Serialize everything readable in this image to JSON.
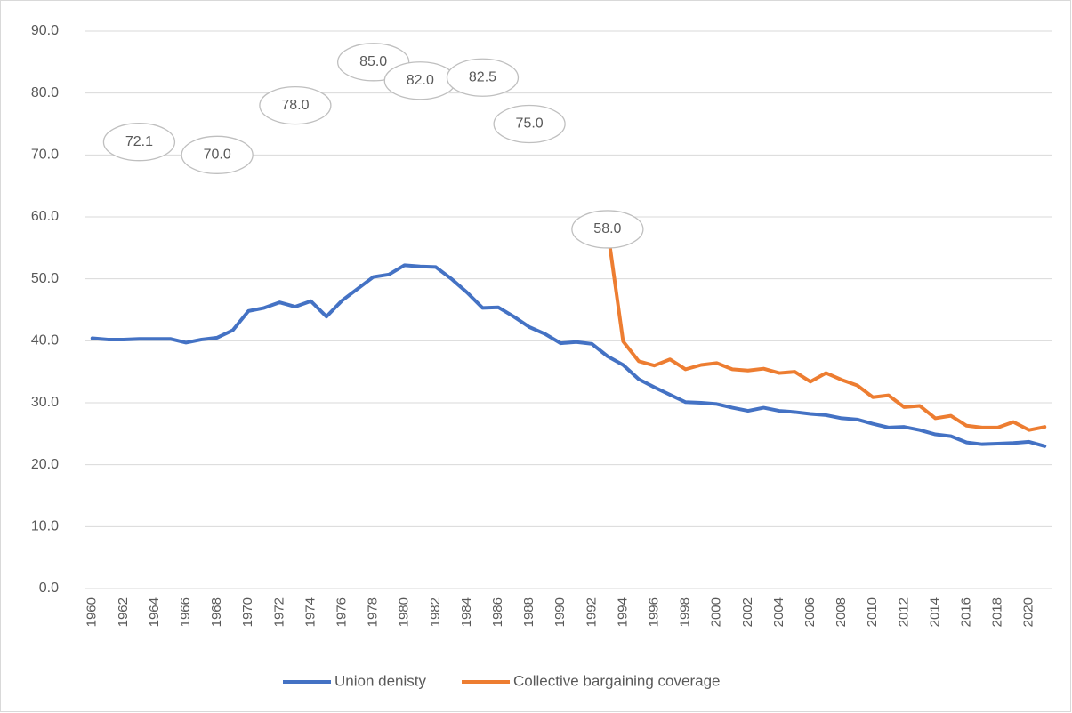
{
  "chart_data": {
    "type": "line",
    "categories": [
      "1960",
      null,
      "1962",
      null,
      "1964",
      null,
      "1966",
      null,
      "1968",
      null,
      "1970",
      null,
      "1972",
      null,
      "1974",
      null,
      "1976",
      null,
      "1978",
      null,
      "1980",
      null,
      "1982",
      null,
      "1984",
      null,
      "1986",
      null,
      "1988",
      null,
      "1990",
      null,
      "1992",
      null,
      "1994",
      null,
      "1996",
      null,
      "1998",
      null,
      "2000",
      null,
      "2002",
      null,
      "2004",
      null,
      "2006",
      null,
      "2008",
      null,
      "2010",
      null,
      "2012",
      null,
      "2014",
      null,
      "2016",
      null,
      "2018",
      null,
      "2020",
      null
    ],
    "series": [
      {
        "name": "Union denisty",
        "color": "#4472c4",
        "values": [
          40.4,
          40.2,
          40.2,
          40.3,
          40.3,
          40.3,
          39.7,
          40.2,
          40.5,
          41.7,
          44.8,
          45.3,
          46.2,
          45.5,
          46.4,
          43.9,
          46.5,
          48.4,
          50.3,
          50.7,
          52.2,
          52.0,
          51.9,
          50.0,
          47.8,
          45.3,
          45.4,
          43.9,
          42.2,
          41.1,
          39.6,
          39.8,
          39.5,
          37.5,
          36.1,
          33.8,
          32.5,
          31.3,
          30.1,
          30.0,
          29.8,
          29.2,
          28.7,
          29.2,
          28.7,
          28.5,
          28.2,
          28.0,
          27.5,
          27.3,
          26.6,
          26.0,
          26.1,
          25.6,
          24.9,
          24.6,
          23.6,
          23.3,
          23.4,
          23.5,
          23.7,
          23.0
        ]
      },
      {
        "name": "Collective bargaining coverage",
        "color": "#ed7d31",
        "values": [
          null,
          null,
          null,
          72.1,
          null,
          null,
          null,
          null,
          70.0,
          null,
          null,
          null,
          null,
          78.0,
          null,
          null,
          null,
          null,
          85.0,
          null,
          null,
          82.0,
          null,
          null,
          null,
          82.5,
          null,
          null,
          75.0,
          null,
          null,
          null,
          null,
          58.0,
          39.9,
          36.7,
          36.0,
          37.0,
          35.4,
          36.1,
          36.4,
          35.4,
          35.2,
          35.5,
          34.8,
          35.0,
          33.4,
          34.8,
          33.7,
          32.8,
          30.9,
          31.2,
          29.3,
          29.5,
          27.5,
          27.9,
          26.3,
          26.0,
          26.0,
          26.9,
          25.6,
          26.1
        ],
        "value_labels": [
          null,
          null,
          null,
          "72.1",
          null,
          null,
          null,
          null,
          "70.0",
          null,
          null,
          null,
          null,
          "78.0",
          null,
          null,
          null,
          null,
          "85.0",
          null,
          null,
          "82.0",
          null,
          null,
          null,
          "82.5",
          null,
          null,
          "75.0",
          null,
          null,
          null,
          null,
          "58.0",
          null,
          null,
          null,
          null,
          null,
          null,
          null,
          null,
          null,
          null,
          null,
          null,
          null,
          null,
          null,
          null,
          null,
          null,
          null,
          null,
          null,
          null,
          null,
          null,
          null,
          null,
          null,
          null
        ]
      }
    ],
    "ylim": [
      0,
      90
    ],
    "yticks": [
      {
        "value": 0,
        "label": "0.0"
      },
      {
        "value": 10,
        "label": "10.0"
      },
      {
        "value": 20,
        "label": "20.0"
      },
      {
        "value": 30,
        "label": "30.0"
      },
      {
        "value": 40,
        "label": "40.0"
      },
      {
        "value": 50,
        "label": "50.0"
      },
      {
        "value": 60,
        "label": "60.0"
      },
      {
        "value": 70,
        "label": "70.0"
      },
      {
        "value": 80,
        "label": "80.0"
      },
      {
        "value": 90,
        "label": "90.0"
      }
    ],
    "grid": true,
    "legend": "bottom"
  }
}
